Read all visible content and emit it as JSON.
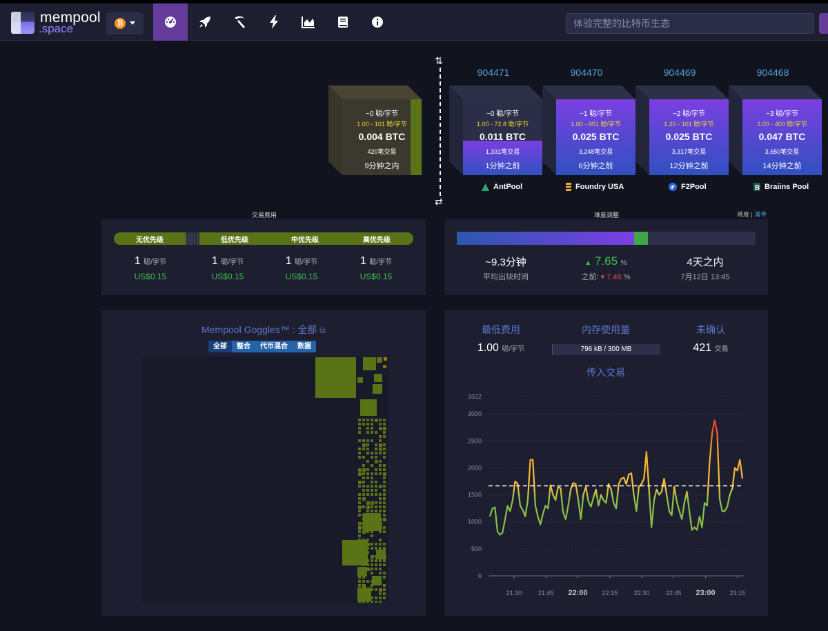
{
  "header": {
    "logo_line1": "mempool",
    "logo_line2": ".space",
    "network_icon": "bitcoin-icon",
    "nav_icons": [
      "dashboard-icon",
      "rocket-icon",
      "pickaxe-icon",
      "lightning-icon",
      "chart-icon",
      "book-icon",
      "info-icon"
    ],
    "search_placeholder": "体验完整的比特币生态"
  },
  "blockchain": {
    "pending_block": {
      "fee_median": "~0 聪/字节",
      "fee_range": "1.00 - 101 聪/字节",
      "total": "0.004 BTC",
      "tx_count": "420笔交易",
      "time": "9分钟之内"
    },
    "blocks": [
      {
        "height": "904471",
        "fee_median": "~0 聪/字节",
        "fee_range": "1.00 - 72.8 聪/字节",
        "total": "0.011 BTC",
        "tx_count": "1,331笔交易",
        "time": "1分钟之前",
        "pool": "AntPool",
        "fill": 0.45
      },
      {
        "height": "904470",
        "fee_median": "~1 聪/字节",
        "fee_range": "1.00 - 951 聪/字节",
        "total": "0.025 BTC",
        "tx_count": "3,248笔交易",
        "time": "6分钟之前",
        "pool": "Foundry USA",
        "fill": 1.0
      },
      {
        "height": "904469",
        "fee_median": "~2 聪/字节",
        "fee_range": "1.20 - 101 聪/字节",
        "total": "0.025 BTC",
        "tx_count": "3,317笔交易",
        "time": "12分钟之前",
        "pool": "F2Pool",
        "fill": 1.0
      },
      {
        "height": "904468",
        "fee_median": "~3 聪/字节",
        "fee_range": "2.00 - 400 聪/字节",
        "total": "0.047 BTC",
        "tx_count": "3,650笔交易",
        "time": "14分钟之前",
        "pool": "Braiins Pool",
        "fill": 1.0
      }
    ]
  },
  "fees": {
    "title": "交易费用",
    "tiers": [
      {
        "label": "无优先级",
        "value": "1",
        "unit": "聪/字节",
        "usd": "US$0.15"
      },
      {
        "label": "低优先级",
        "value": "1",
        "unit": "聪/字节",
        "usd": "US$0.15"
      },
      {
        "label": "中优先级",
        "value": "1",
        "unit": "聪/字节",
        "usd": "US$0.15"
      },
      {
        "label": "高优先级",
        "value": "1",
        "unit": "聪/字节",
        "usd": "US$0.15"
      }
    ]
  },
  "difficulty": {
    "title": "难度调整",
    "toggle_label": "难度",
    "toggle_alt": "减半",
    "progress": 0.64,
    "avg_block_time": "~9.3分钟",
    "avg_block_time_label": "平均出块时间",
    "change": "7.65",
    "change_unit": "%",
    "previous_label": "之前:",
    "previous": "7.48",
    "previous_unit": "%",
    "eta": "4天之内",
    "eta_date": "7月12日 13:45"
  },
  "goggles": {
    "title": "Mempool Goggles™ : 全部",
    "tabs": [
      "全部",
      "整合",
      "代币混合",
      "数据"
    ],
    "selected_tab": "全部"
  },
  "mempool": {
    "min_fee_title": "最低费用",
    "min_fee": "1.00",
    "min_fee_unit": "聪/字节",
    "memory_title": "内存使用量",
    "memory": "796 kB / 300 MB",
    "memory_fraction": 0.0027,
    "unconfirmed_title": "未确认",
    "unconfirmed": "421",
    "unconfirmed_unit": "交易",
    "incoming_title": "传入交易"
  },
  "chart_data": {
    "type": "line",
    "title": "传入交易",
    "x_ticks": [
      "21:30",
      "21:45",
      "22:00",
      "22:15",
      "22:30",
      "22:45",
      "23:00",
      "23:15"
    ],
    "y_ticks": [
      0,
      500,
      1000,
      1500,
      2000,
      2500,
      3000,
      3322
    ],
    "ylim": [
      0,
      3322
    ],
    "reference_line": 1667,
    "values": [
      1100,
      1250,
      1270,
      820,
      760,
      800,
      1050,
      1300,
      1200,
      1400,
      1750,
      1700,
      1300,
      1220,
      1100,
      1400,
      2150,
      2150,
      1300,
      1100,
      950,
      1150,
      1300,
      1250,
      1680,
      1500,
      1400,
      1650,
      1620,
      1180,
      1050,
      1300,
      1600,
      1720,
      1700,
      1400,
      1050,
      1500,
      1650,
      1380,
      1280,
      1450,
      1600,
      1300,
      1500,
      1400,
      1350,
      1700,
      1600,
      1350,
      1250,
      1700,
      1800,
      1820,
      1700,
      1880,
      1900,
      1500,
      1200,
      1650,
      1700,
      1800,
      2300,
      1600,
      900,
      1400,
      1600,
      1500,
      1560,
      1800,
      1500,
      1200,
      1120,
      1650,
      1380,
      1200,
      1050,
      1350,
      1560,
      1200,
      850,
      900,
      850,
      1100,
      900,
      1350,
      1300,
      2100,
      2650,
      2880,
      2650,
      1420,
      1200,
      1200,
      1280,
      1500,
      1620,
      2000,
      1950,
      2150,
      1800
    ],
    "grid": true
  }
}
